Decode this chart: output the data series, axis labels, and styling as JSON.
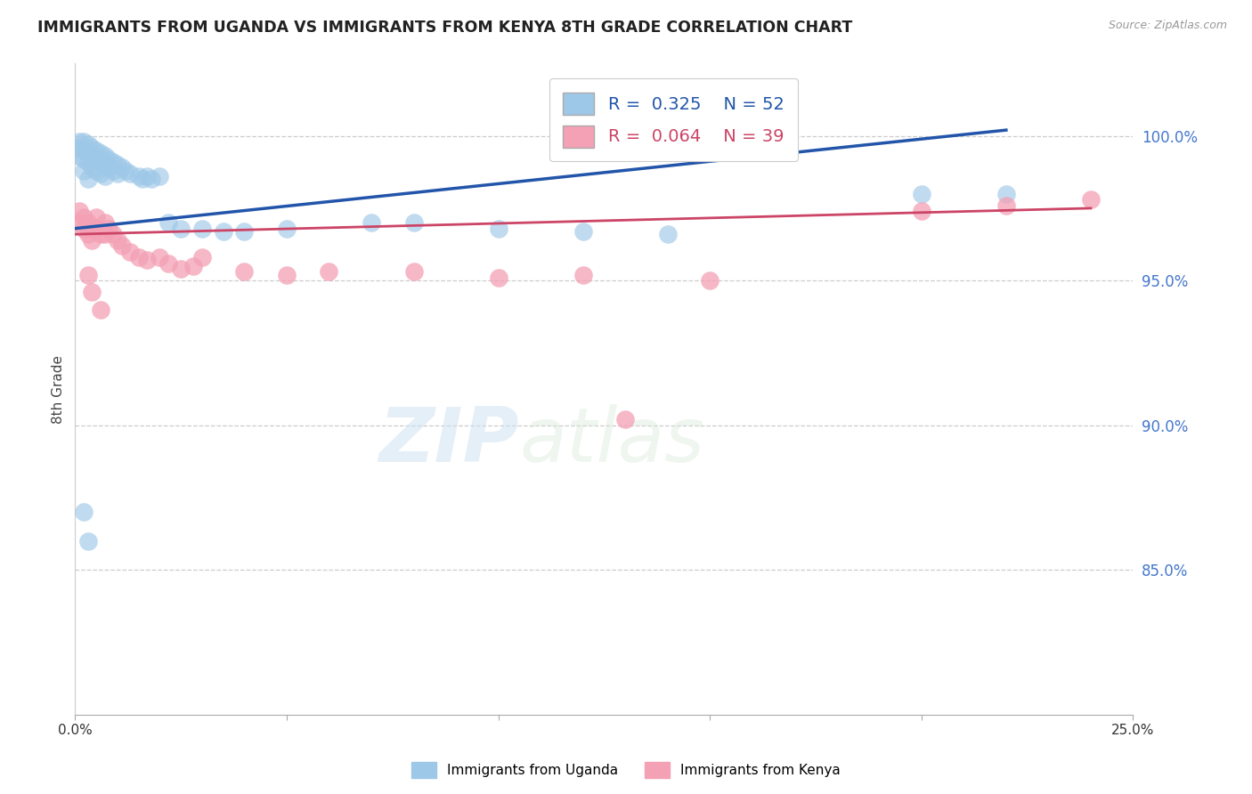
{
  "title": "IMMIGRANTS FROM UGANDA VS IMMIGRANTS FROM KENYA 8TH GRADE CORRELATION CHART",
  "source": "Source: ZipAtlas.com",
  "ylabel": "8th Grade",
  "ylabel_ticks": [
    "100.0%",
    "95.0%",
    "90.0%",
    "85.0%"
  ],
  "ylabel_tick_vals": [
    1.0,
    0.95,
    0.9,
    0.85
  ],
  "xlim": [
    0.0,
    0.25
  ],
  "ylim": [
    0.8,
    1.025
  ],
  "watermark_left": "ZIP",
  "watermark_right": "atlas",
  "legend_blue_r": "0.325",
  "legend_blue_n": "52",
  "legend_pink_r": "0.064",
  "legend_pink_n": "39",
  "blue_color": "#9ec8e8",
  "pink_color": "#f4a0b5",
  "line_blue": "#2255aa",
  "line_pink": "#cc4466",
  "blue_scatter_x": [
    0.001,
    0.001,
    0.001,
    0.002,
    0.002,
    0.002,
    0.002,
    0.003,
    0.003,
    0.003,
    0.003,
    0.004,
    0.004,
    0.004,
    0.005,
    0.005,
    0.005,
    0.006,
    0.006,
    0.006,
    0.007,
    0.007,
    0.007,
    0.008,
    0.008,
    0.009,
    0.009,
    0.01,
    0.01,
    0.011,
    0.012,
    0.013,
    0.015,
    0.016,
    0.017,
    0.018,
    0.02,
    0.022,
    0.025,
    0.03,
    0.035,
    0.04,
    0.05,
    0.07,
    0.08,
    0.1,
    0.12,
    0.14,
    0.2,
    0.22,
    0.002,
    0.003
  ],
  "blue_scatter_y": [
    0.998,
    0.996,
    0.993,
    0.998,
    0.995,
    0.992,
    0.988,
    0.997,
    0.994,
    0.991,
    0.985,
    0.996,
    0.993,
    0.989,
    0.995,
    0.992,
    0.988,
    0.994,
    0.991,
    0.987,
    0.993,
    0.99,
    0.986,
    0.992,
    0.989,
    0.991,
    0.988,
    0.99,
    0.987,
    0.989,
    0.988,
    0.987,
    0.986,
    0.985,
    0.986,
    0.985,
    0.986,
    0.97,
    0.968,
    0.968,
    0.967,
    0.967,
    0.968,
    0.97,
    0.97,
    0.968,
    0.967,
    0.966,
    0.98,
    0.98,
    0.87,
    0.86
  ],
  "pink_scatter_x": [
    0.001,
    0.001,
    0.002,
    0.002,
    0.003,
    0.003,
    0.004,
    0.004,
    0.005,
    0.005,
    0.006,
    0.007,
    0.007,
    0.008,
    0.009,
    0.01,
    0.011,
    0.013,
    0.015,
    0.017,
    0.02,
    0.022,
    0.025,
    0.028,
    0.03,
    0.04,
    0.05,
    0.06,
    0.08,
    0.1,
    0.12,
    0.13,
    0.15,
    0.2,
    0.22,
    0.24,
    0.003,
    0.004,
    0.006
  ],
  "pink_scatter_y": [
    0.974,
    0.97,
    0.972,
    0.968,
    0.97,
    0.966,
    0.968,
    0.964,
    0.972,
    0.968,
    0.966,
    0.97,
    0.966,
    0.968,
    0.966,
    0.964,
    0.962,
    0.96,
    0.958,
    0.957,
    0.958,
    0.956,
    0.954,
    0.955,
    0.958,
    0.953,
    0.952,
    0.953,
    0.953,
    0.951,
    0.952,
    0.902,
    0.95,
    0.974,
    0.976,
    0.978,
    0.952,
    0.946,
    0.94
  ],
  "blue_line_x0": 0.0,
  "blue_line_y0": 0.968,
  "blue_line_x1": 0.22,
  "blue_line_y1": 1.002,
  "pink_line_x0": 0.0,
  "pink_line_y0": 0.966,
  "pink_line_x1": 0.24,
  "pink_line_y1": 0.975
}
